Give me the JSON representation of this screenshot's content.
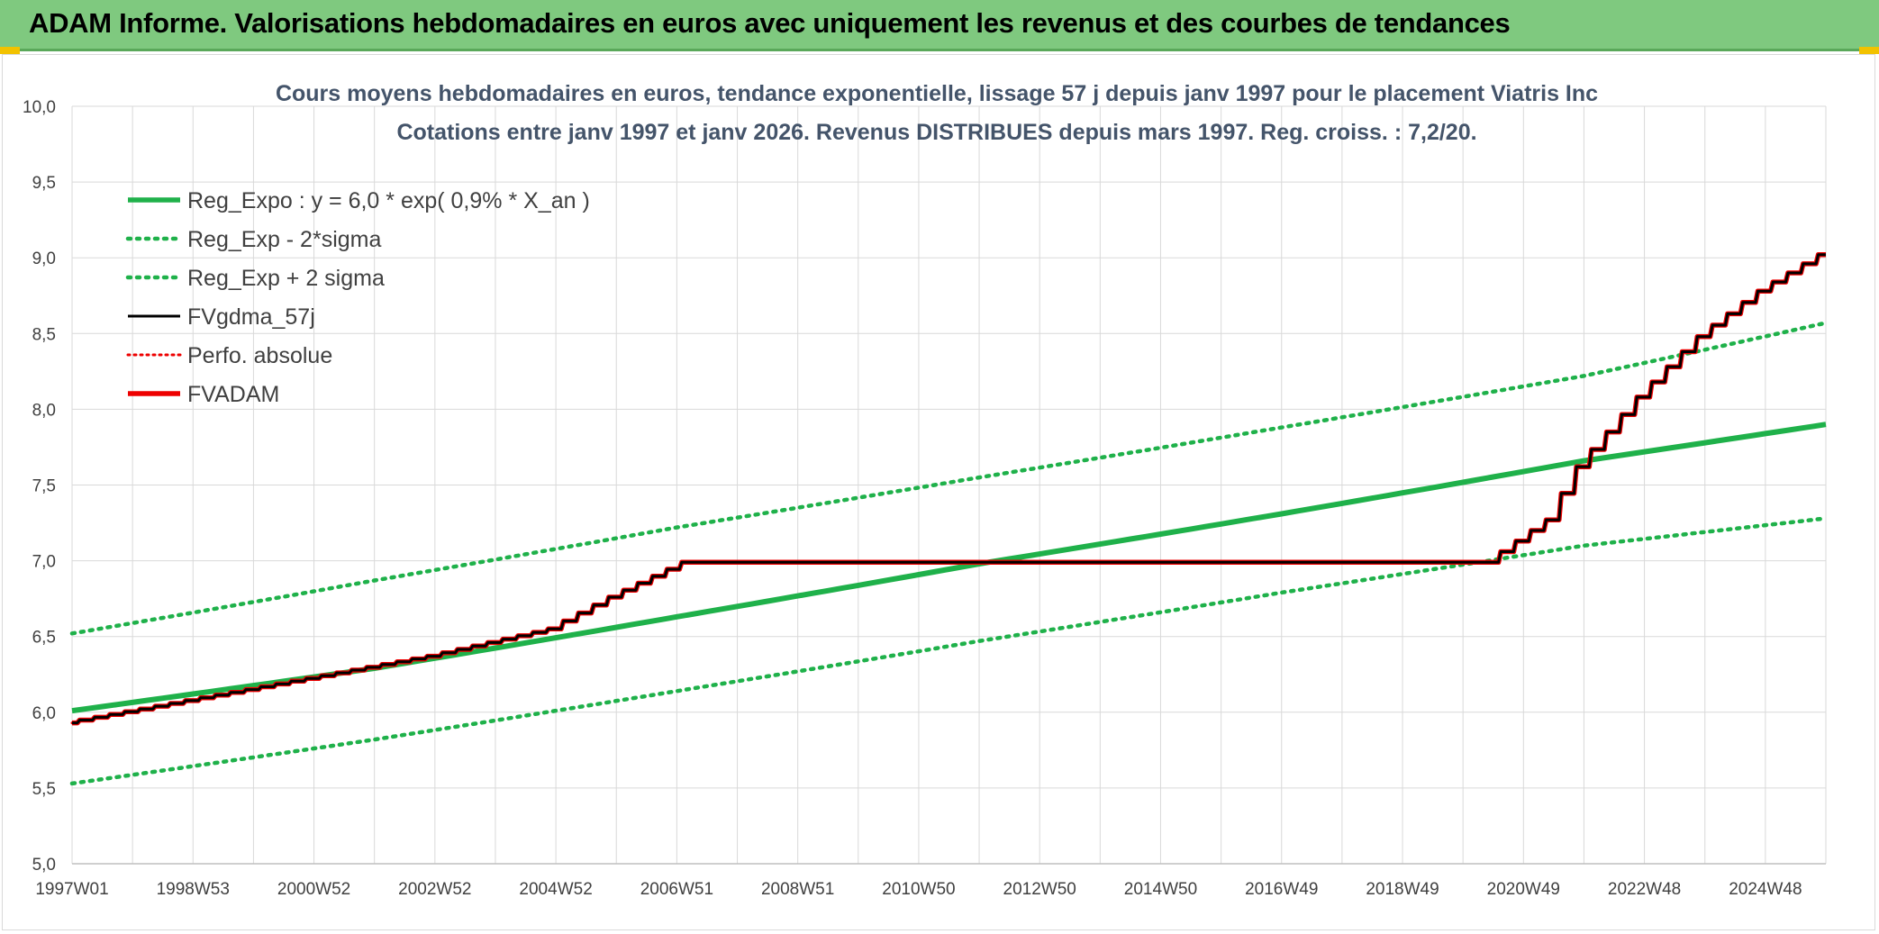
{
  "header": {
    "title": "ADAM Informe. Valorisations hebdomadaires en euros avec uniquement les revenus et des courbes de tendances"
  },
  "colors": {
    "header_bg": "#7fc97f",
    "green": "#1fb14a",
    "red": "#ee0000",
    "black": "#000000",
    "grid": "#d9d9d9"
  },
  "chart_data": {
    "type": "line",
    "title": "Cours moyens hebdomadaires en euros, tendance exponentielle, lissage 57 j depuis janv 1997 pour le placement Viatris Inc",
    "subtitle": "Cotations entre janv 1997 et janv 2026. Revenus DISTRIBUES depuis mars 1997. Reg. croiss. : 7,2/20.",
    "xlabel": "",
    "ylabel": "",
    "x_ticks": [
      "1997W01",
      "1998W53",
      "2000W52",
      "2002W52",
      "2004W52",
      "2006W51",
      "2008W51",
      "2010W50",
      "2012W50",
      "2014W50",
      "2016W49",
      "2018W49",
      "2020W49",
      "2022W48",
      "2024W48"
    ],
    "x_range": [
      1997.0,
      2026.0
    ],
    "y_ticks": [
      "5,0",
      "5,5",
      "6,0",
      "6,5",
      "7,0",
      "7,5",
      "8,0",
      "8,5",
      "9,0",
      "9,5",
      "10,0"
    ],
    "ylim": [
      5.0,
      10.0
    ],
    "grid": true,
    "legend_position": "top-left",
    "series": [
      {
        "name": "Reg_Expo : y = 6,0 * exp( 0,9% *  X_an )",
        "style": "solid-green",
        "x": [
          1997.0,
          2002.0,
          2007.0,
          2012.0,
          2017.0,
          2022.0,
          2026.0
        ],
        "y": [
          6.01,
          6.29,
          6.63,
          6.98,
          7.31,
          7.66,
          7.9
        ]
      },
      {
        "name": "Reg_Exp - 2*sigma",
        "style": "dotted-green",
        "x": [
          1997.0,
          2002.0,
          2007.0,
          2012.0,
          2017.0,
          2022.0,
          2026.0
        ],
        "y": [
          5.53,
          5.82,
          6.14,
          6.47,
          6.79,
          7.1,
          7.28
        ]
      },
      {
        "name": "Reg_Exp + 2 sigma",
        "style": "dotted-green",
        "x": [
          1997.0,
          2002.0,
          2007.0,
          2012.0,
          2017.0,
          2022.0,
          2026.0
        ],
        "y": [
          6.52,
          6.87,
          7.22,
          7.55,
          7.88,
          8.22,
          8.57
        ]
      },
      {
        "name": "FVgdma_57j",
        "style": "solid-black",
        "x": [
          1997.0,
          2003.0,
          2005.0,
          2006.0,
          2007.2,
          2020.5,
          2021.5,
          2022.0,
          2023.0,
          2024.0,
          2025.0,
          2026.0
        ],
        "y": [
          5.93,
          6.37,
          6.55,
          6.76,
          6.99,
          6.99,
          7.27,
          7.62,
          8.08,
          8.48,
          8.78,
          9.02
        ]
      },
      {
        "name": "Perfo. absolue",
        "style": "dotted-red",
        "x": [
          1997.0,
          2003.0,
          2005.0,
          2006.0,
          2007.2,
          2020.5,
          2021.5,
          2022.0,
          2023.0,
          2024.0,
          2025.0,
          2026.0
        ],
        "y": [
          5.93,
          6.37,
          6.55,
          6.76,
          6.99,
          6.99,
          7.27,
          7.62,
          8.08,
          8.48,
          8.78,
          9.02
        ]
      },
      {
        "name": "FVADAM",
        "style": "solid-red",
        "x": [
          1997.0,
          2003.0,
          2005.0,
          2006.0,
          2007.2,
          2020.5,
          2021.5,
          2022.0,
          2023.0,
          2024.0,
          2025.0,
          2026.0
        ],
        "y": [
          5.93,
          6.37,
          6.55,
          6.76,
          6.99,
          6.99,
          7.27,
          7.62,
          8.08,
          8.48,
          8.78,
          9.02
        ]
      }
    ]
  }
}
